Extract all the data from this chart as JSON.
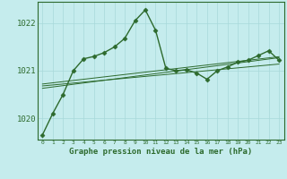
{
  "title": "Graphe pression niveau de la mer (hPa)",
  "bg_color": "#c5eced",
  "grid_color": "#a8d8da",
  "line_color": "#2d6a2d",
  "x_hours": [
    0,
    1,
    2,
    3,
    4,
    5,
    6,
    7,
    8,
    9,
    10,
    11,
    12,
    13,
    14,
    15,
    16,
    17,
    18,
    19,
    20,
    21,
    22,
    23
  ],
  "main_line": [
    1019.65,
    1020.1,
    1020.5,
    1021.0,
    1021.25,
    1021.3,
    1021.38,
    1021.5,
    1021.68,
    1022.05,
    1022.28,
    1021.85,
    1021.05,
    1021.0,
    1021.02,
    1020.95,
    1020.82,
    1021.0,
    1021.08,
    1021.18,
    1021.22,
    1021.32,
    1021.42,
    1021.22
  ],
  "trend_line1": [
    1020.68,
    1020.7,
    1020.72,
    1020.74,
    1020.76,
    1020.78,
    1020.8,
    1020.82,
    1020.84,
    1020.86,
    1020.88,
    1020.9,
    1020.92,
    1020.94,
    1020.96,
    1020.98,
    1021.0,
    1021.02,
    1021.04,
    1021.06,
    1021.08,
    1021.1,
    1021.12,
    1021.14
  ],
  "trend_line2": [
    1020.72,
    1020.745,
    1020.77,
    1020.795,
    1020.82,
    1020.845,
    1020.87,
    1020.895,
    1020.92,
    1020.945,
    1020.97,
    1020.995,
    1021.02,
    1021.045,
    1021.07,
    1021.095,
    1021.12,
    1021.145,
    1021.17,
    1021.195,
    1021.22,
    1021.245,
    1021.27,
    1021.295
  ],
  "trend_line3": [
    1020.63,
    1020.658,
    1020.686,
    1020.714,
    1020.742,
    1020.77,
    1020.798,
    1020.826,
    1020.854,
    1020.882,
    1020.91,
    1020.938,
    1020.966,
    1020.994,
    1021.022,
    1021.05,
    1021.078,
    1021.106,
    1021.134,
    1021.162,
    1021.19,
    1021.218,
    1021.246,
    1021.274
  ],
  "ylim": [
    1019.55,
    1022.45
  ],
  "yticks": [
    1020,
    1021,
    1022
  ],
  "xlim_min": -0.5,
  "xlim_max": 23.5
}
